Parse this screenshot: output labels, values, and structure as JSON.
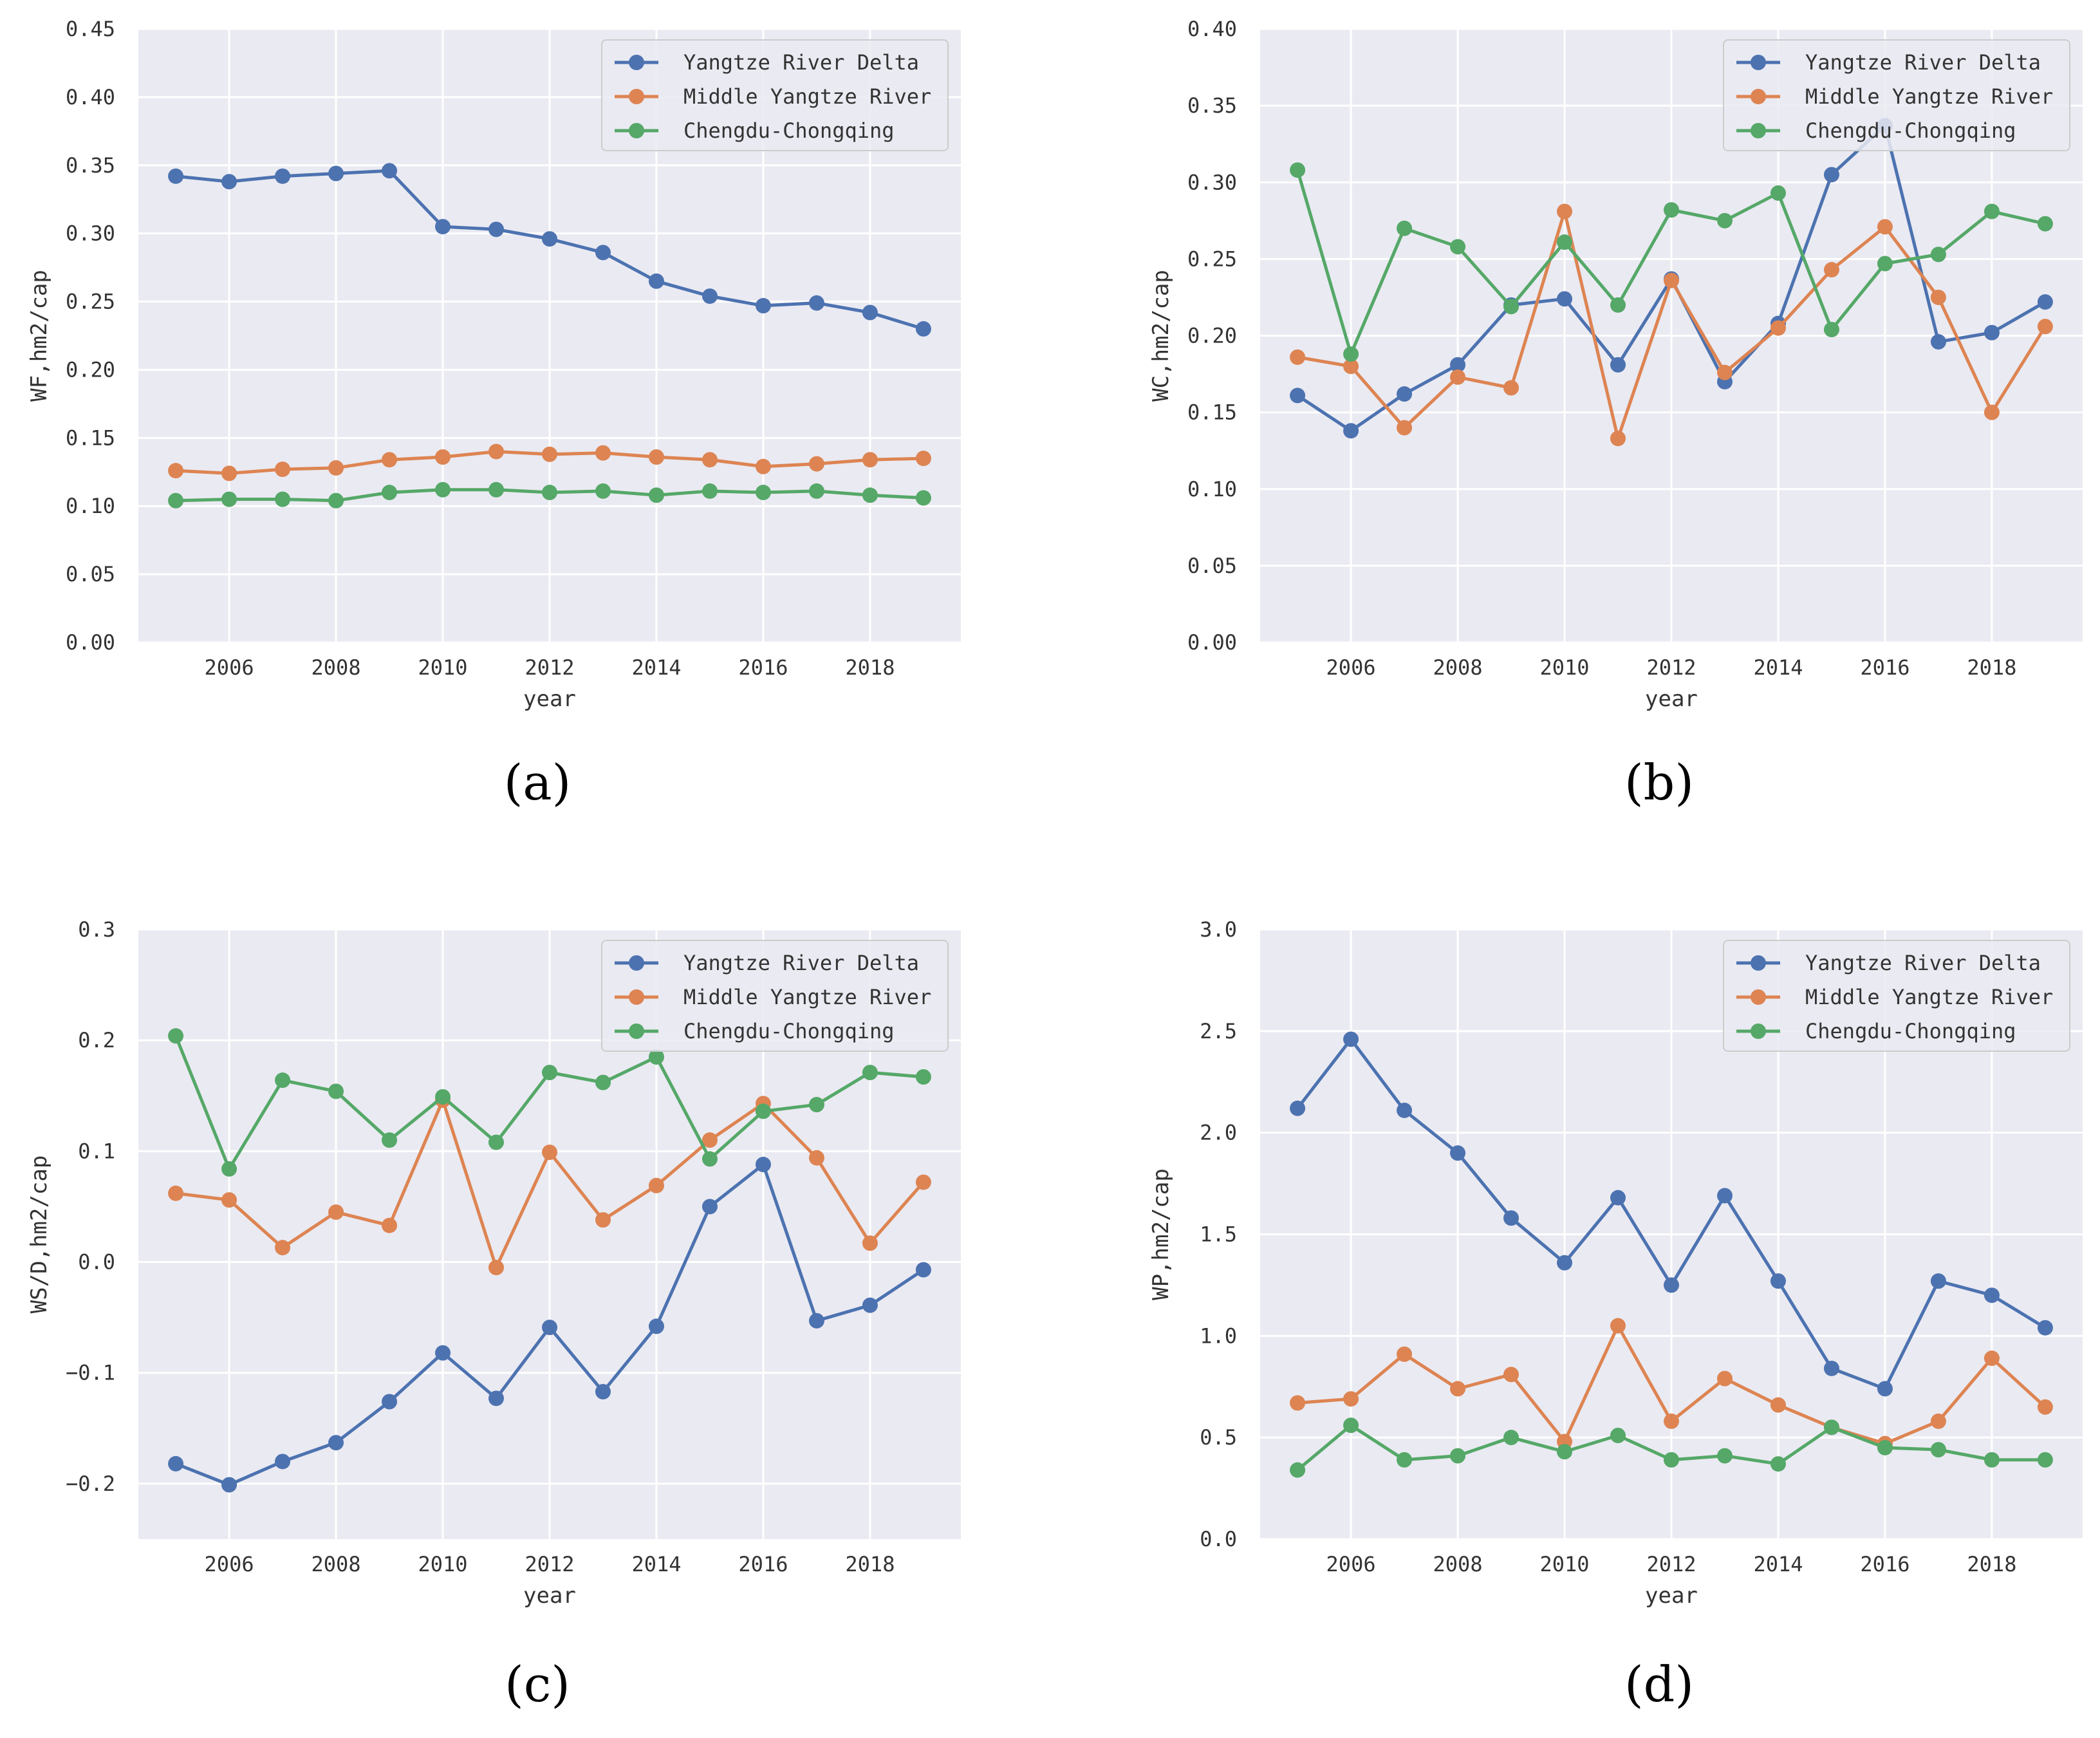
{
  "figure": {
    "colors": {
      "plot_bg": "#eaeaf2",
      "grid": "#ffffff",
      "text": "#333333"
    },
    "panel_labels": [
      "(a)",
      "(b)",
      "(c)",
      "(d)"
    ]
  },
  "chart_data": [
    {
      "type": "line",
      "panel": "(a)",
      "title": "",
      "xlabel": "year",
      "ylabel": "WF,hm2/cap",
      "x": [
        2005,
        2006,
        2007,
        2008,
        2009,
        2010,
        2011,
        2012,
        2013,
        2014,
        2015,
        2016,
        2017,
        2018,
        2019
      ],
      "xlim": [
        2004.3,
        2019.7
      ],
      "ylim": [
        0,
        0.45
      ],
      "x_ticks": [
        2006,
        2008,
        2010,
        2012,
        2014,
        2016,
        2018
      ],
      "x_tick_labels": [
        "2006",
        "2008",
        "2010",
        "2012",
        "2014",
        "2016",
        "2018"
      ],
      "y_ticks": [
        0,
        0.05,
        0.1,
        0.15,
        0.2,
        0.25,
        0.3,
        0.35,
        0.4,
        0.45
      ],
      "y_tick_labels": [
        "0.00",
        "0.05",
        "0.10",
        "0.15",
        "0.20",
        "0.25",
        "0.30",
        "0.35",
        "0.40",
        "0.45"
      ],
      "legend": "top-right",
      "series": [
        {
          "name": "Yangtze River Delta",
          "color": "#4c72b0",
          "values": [
            0.342,
            0.338,
            0.342,
            0.344,
            0.346,
            0.305,
            0.303,
            0.296,
            0.286,
            0.265,
            0.254,
            0.247,
            0.249,
            0.242,
            0.23
          ]
        },
        {
          "name": "Middle Yangtze River",
          "color": "#dd8452",
          "values": [
            0.126,
            0.124,
            0.127,
            0.128,
            0.134,
            0.136,
            0.14,
            0.138,
            0.139,
            0.136,
            0.134,
            0.129,
            0.131,
            0.134,
            0.135
          ]
        },
        {
          "name": "Chengdu-Chongqing",
          "color": "#55a868",
          "values": [
            0.104,
            0.105,
            0.105,
            0.104,
            0.11,
            0.112,
            0.112,
            0.11,
            0.111,
            0.108,
            0.111,
            0.11,
            0.111,
            0.108,
            0.106
          ]
        }
      ]
    },
    {
      "type": "line",
      "panel": "(b)",
      "title": "",
      "xlabel": "year",
      "ylabel": "WC,hm2/cap",
      "x": [
        2005,
        2006,
        2007,
        2008,
        2009,
        2010,
        2011,
        2012,
        2013,
        2014,
        2015,
        2016,
        2017,
        2018,
        2019
      ],
      "xlim": [
        2004.3,
        2019.7
      ],
      "ylim": [
        0,
        0.4
      ],
      "x_ticks": [
        2006,
        2008,
        2010,
        2012,
        2014,
        2016,
        2018
      ],
      "x_tick_labels": [
        "2006",
        "2008",
        "2010",
        "2012",
        "2014",
        "2016",
        "2018"
      ],
      "y_ticks": [
        0,
        0.05,
        0.1,
        0.15,
        0.2,
        0.25,
        0.3,
        0.35,
        0.4
      ],
      "y_tick_labels": [
        "0.00",
        "0.05",
        "0.10",
        "0.15",
        "0.20",
        "0.25",
        "0.30",
        "0.35",
        "0.40"
      ],
      "legend": "top-right",
      "series": [
        {
          "name": "Yangtze River Delta",
          "color": "#4c72b0",
          "values": [
            0.161,
            0.138,
            0.162,
            0.181,
            0.22,
            0.224,
            0.181,
            0.237,
            0.17,
            0.208,
            0.305,
            0.337,
            0.196,
            0.202,
            0.222
          ]
        },
        {
          "name": "Middle Yangtze River",
          "color": "#dd8452",
          "values": [
            0.186,
            0.18,
            0.14,
            0.173,
            0.166,
            0.281,
            0.133,
            0.236,
            0.176,
            0.205,
            0.243,
            0.271,
            0.225,
            0.15,
            0.206
          ]
        },
        {
          "name": "Chengdu-Chongqing",
          "color": "#55a868",
          "values": [
            0.308,
            0.188,
            0.27,
            0.258,
            0.219,
            0.261,
            0.22,
            0.282,
            0.275,
            0.293,
            0.204,
            0.247,
            0.253,
            0.281,
            0.273
          ]
        }
      ]
    },
    {
      "type": "line",
      "panel": "(c)",
      "title": "",
      "xlabel": "year",
      "ylabel": "WS/D,hm2/cap",
      "x": [
        2005,
        2006,
        2007,
        2008,
        2009,
        2010,
        2011,
        2012,
        2013,
        2014,
        2015,
        2016,
        2017,
        2018,
        2019
      ],
      "xlim": [
        2004.3,
        2019.7
      ],
      "ylim": [
        -0.25,
        0.3
      ],
      "x_ticks": [
        2006,
        2008,
        2010,
        2012,
        2014,
        2016,
        2018
      ],
      "x_tick_labels": [
        "2006",
        "2008",
        "2010",
        "2012",
        "2014",
        "2016",
        "2018"
      ],
      "y_ticks": [
        -0.2,
        -0.1,
        0,
        0.1,
        0.2,
        0.3
      ],
      "y_tick_labels": [
        "−0.2",
        "−0.1",
        "0.0",
        "0.1",
        "0.2",
        "0.3"
      ],
      "legend": "top-right",
      "series": [
        {
          "name": "Yangtze River Delta",
          "color": "#4c72b0",
          "values": [
            -0.182,
            -0.201,
            -0.18,
            -0.163,
            -0.126,
            -0.082,
            -0.123,
            -0.059,
            -0.117,
            -0.058,
            0.05,
            0.088,
            -0.053,
            -0.039,
            -0.007
          ]
        },
        {
          "name": "Middle Yangtze River",
          "color": "#dd8452",
          "values": [
            0.062,
            0.056,
            0.013,
            0.045,
            0.033,
            0.146,
            -0.005,
            0.099,
            0.038,
            0.069,
            0.11,
            0.143,
            0.094,
            0.017,
            0.072
          ]
        },
        {
          "name": "Chengdu-Chongqing",
          "color": "#55a868",
          "values": [
            0.204,
            0.084,
            0.164,
            0.154,
            0.11,
            0.149,
            0.108,
            0.171,
            0.162,
            0.185,
            0.093,
            0.136,
            0.142,
            0.171,
            0.167
          ]
        }
      ]
    },
    {
      "type": "line",
      "panel": "(d)",
      "title": "",
      "xlabel": "year",
      "ylabel": "WP,hm2/cap",
      "x": [
        2005,
        2006,
        2007,
        2008,
        2009,
        2010,
        2011,
        2012,
        2013,
        2014,
        2015,
        2016,
        2017,
        2018,
        2019
      ],
      "xlim": [
        2004.3,
        2019.7
      ],
      "ylim": [
        0,
        3.0
      ],
      "x_ticks": [
        2006,
        2008,
        2010,
        2012,
        2014,
        2016,
        2018
      ],
      "x_tick_labels": [
        "2006",
        "2008",
        "2010",
        "2012",
        "2014",
        "2016",
        "2018"
      ],
      "y_ticks": [
        0,
        0.5,
        1.0,
        1.5,
        2.0,
        2.5,
        3.0
      ],
      "y_tick_labels": [
        "0.0",
        "0.5",
        "1.0",
        "1.5",
        "2.0",
        "2.5",
        "3.0"
      ],
      "legend": "top-right",
      "series": [
        {
          "name": "Yangtze River Delta",
          "color": "#4c72b0",
          "values": [
            2.12,
            2.46,
            2.11,
            1.9,
            1.58,
            1.36,
            1.68,
            1.25,
            1.69,
            1.27,
            0.84,
            0.74,
            1.27,
            1.2,
            1.04
          ]
        },
        {
          "name": "Middle Yangtze River",
          "color": "#dd8452",
          "values": [
            0.67,
            0.69,
            0.91,
            0.74,
            0.81,
            0.48,
            1.05,
            0.58,
            0.79,
            0.66,
            0.55,
            0.47,
            0.58,
            0.89,
            0.65
          ]
        },
        {
          "name": "Chengdu-Chongqing",
          "color": "#55a868",
          "values": [
            0.34,
            0.56,
            0.39,
            0.41,
            0.5,
            0.43,
            0.51,
            0.39,
            0.41,
            0.37,
            0.55,
            0.45,
            0.44,
            0.39,
            0.39
          ]
        }
      ]
    }
  ]
}
